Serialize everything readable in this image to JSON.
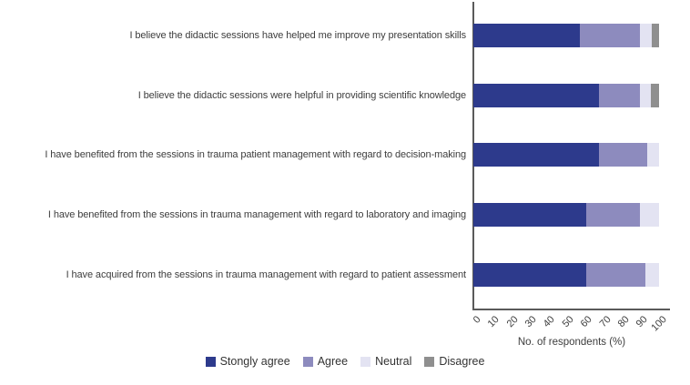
{
  "chart_data": {
    "type": "bar",
    "orientation": "horizontal",
    "stacked": true,
    "title": "",
    "xlabel": "No. of respondents (%)",
    "xlim": [
      0,
      100
    ],
    "xticks": [
      0,
      10,
      20,
      30,
      40,
      50,
      60,
      70,
      80,
      90,
      100
    ],
    "grid": false,
    "legend_position": "bottom",
    "categories": [
      "I believe the didactic sessions have helped me improve my presentation skills",
      "I believe the didactic sessions were helpful in providing scientific knowledge",
      "I have benefited from the sessions in trauma patient management with regard to decision-making",
      "I have benefited from the sessions in trauma management with regard to laboratory and imaging",
      "I have acquired from the sessions in trauma management with regard to patient assessment"
    ],
    "series": [
      {
        "name": "Stongly agree",
        "color": "#2d3a8c",
        "values": [
          57.5,
          67.5,
          67.5,
          61.0,
          61.0
        ]
      },
      {
        "name": "Agree",
        "color": "#8d8bbe",
        "values": [
          32.0,
          22.0,
          26.0,
          28.5,
          31.5
        ]
      },
      {
        "name": "Neutral",
        "color": "#e3e3f2",
        "values": [
          6.5,
          6.0,
          6.5,
          10.5,
          7.5
        ]
      },
      {
        "name": "Disagree",
        "color": "#8f8f8f",
        "values": [
          4.0,
          4.5,
          0,
          0,
          0
        ]
      }
    ]
  },
  "colors": {
    "axis": "#5a5a5a",
    "text": "#3d3d3d"
  }
}
